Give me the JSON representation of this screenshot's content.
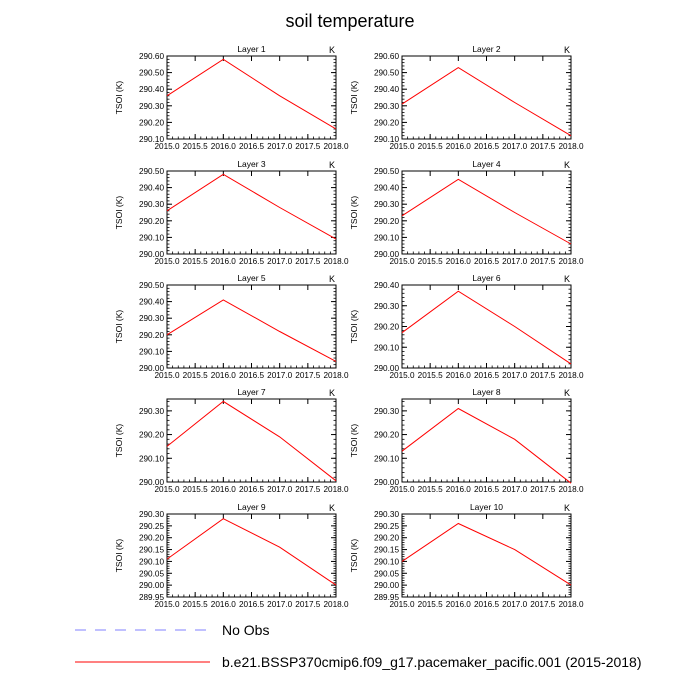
{
  "title": "soil temperature",
  "ylabel": "TSOI  (K)",
  "units": "K",
  "xlim": [
    2015.0,
    2018.0
  ],
  "xticks": [
    "2015.0",
    "2015.5",
    "2016.0",
    "2016.5",
    "2017.0",
    "2017.5",
    "2018.0"
  ],
  "legend": {
    "obs_label": "No Obs",
    "run_label": "b.e21.BSSP370cmip6.f09_g17.pacemaker_pacific.001 (2015-2018)",
    "obs_color": "#8080ff",
    "run_color": "#ff0000"
  },
  "chart_data": [
    {
      "type": "line",
      "title": "Layer 1",
      "x": [
        2015.0,
        2016.0,
        2017.0,
        2018.0
      ],
      "y": [
        290.36,
        290.58,
        290.36,
        290.16
      ],
      "ylim": [
        290.1,
        290.6
      ],
      "yticks": [
        "290.10",
        "290.20",
        "290.30",
        "290.40",
        "290.50",
        "290.60"
      ]
    },
    {
      "type": "line",
      "title": "Layer 2",
      "x": [
        2015.0,
        2016.0,
        2017.0,
        2018.0
      ],
      "y": [
        290.31,
        290.53,
        290.32,
        290.12
      ],
      "ylim": [
        290.1,
        290.6
      ],
      "yticks": [
        "290.10",
        "290.20",
        "290.30",
        "290.40",
        "290.50",
        "290.60"
      ]
    },
    {
      "type": "line",
      "title": "Layer 3",
      "x": [
        2015.0,
        2016.0,
        2017.0,
        2018.0
      ],
      "y": [
        290.26,
        290.48,
        290.28,
        290.09
      ],
      "ylim": [
        290.0,
        290.5
      ],
      "yticks": [
        "290.00",
        "290.10",
        "290.20",
        "290.30",
        "290.40",
        "290.50"
      ]
    },
    {
      "type": "line",
      "title": "Layer 4",
      "x": [
        2015.0,
        2016.0,
        2017.0,
        2018.0
      ],
      "y": [
        290.23,
        290.45,
        290.25,
        290.06
      ],
      "ylim": [
        290.0,
        290.5
      ],
      "yticks": [
        "290.00",
        "290.10",
        "290.20",
        "290.30",
        "290.40",
        "290.50"
      ]
    },
    {
      "type": "line",
      "title": "Layer 5",
      "x": [
        2015.0,
        2016.0,
        2017.0,
        2018.0
      ],
      "y": [
        290.2,
        290.41,
        290.22,
        290.04
      ],
      "ylim": [
        290.0,
        290.5
      ],
      "yticks": [
        "290.00",
        "290.10",
        "290.20",
        "290.30",
        "290.40",
        "290.50"
      ]
    },
    {
      "type": "line",
      "title": "Layer 6",
      "x": [
        2015.0,
        2016.0,
        2017.0,
        2018.0
      ],
      "y": [
        290.17,
        290.37,
        290.2,
        290.02
      ],
      "ylim": [
        290.0,
        290.4
      ],
      "yticks": [
        "290.00",
        "290.10",
        "290.20",
        "290.30",
        "290.40"
      ]
    },
    {
      "type": "line",
      "title": "Layer 7",
      "x": [
        2015.0,
        2016.0,
        2017.0,
        2018.0
      ],
      "y": [
        290.15,
        290.34,
        290.19,
        290.005
      ],
      "ylim": [
        290.0,
        290.35
      ],
      "yticks": [
        "290.00",
        "290.10",
        "290.20",
        "290.30"
      ]
    },
    {
      "type": "line",
      "title": "Layer 8",
      "x": [
        2015.0,
        2016.0,
        2017.0,
        2018.0
      ],
      "y": [
        290.13,
        290.31,
        290.18,
        289.995
      ],
      "ylim": [
        290.0,
        290.35
      ],
      "yticks": [
        "290.00",
        "290.10",
        "290.20",
        "290.30"
      ]
    },
    {
      "type": "line",
      "title": "Layer 9",
      "x": [
        2015.0,
        2016.0,
        2017.0,
        2018.0
      ],
      "y": [
        290.11,
        290.28,
        290.16,
        290.0
      ],
      "ylim": [
        289.95,
        290.3
      ],
      "yticks": [
        "289.95",
        "290.00",
        "290.05",
        "290.10",
        "290.15",
        "290.20",
        "290.25",
        "290.30"
      ]
    },
    {
      "type": "line",
      "title": "Layer 10",
      "x": [
        2015.0,
        2016.0,
        2017.0,
        2018.0
      ],
      "y": [
        290.1,
        290.26,
        290.15,
        290.0
      ],
      "ylim": [
        289.95,
        290.3
      ],
      "yticks": [
        "289.95",
        "290.00",
        "290.05",
        "290.10",
        "290.15",
        "290.20",
        "290.25",
        "290.30"
      ]
    }
  ]
}
